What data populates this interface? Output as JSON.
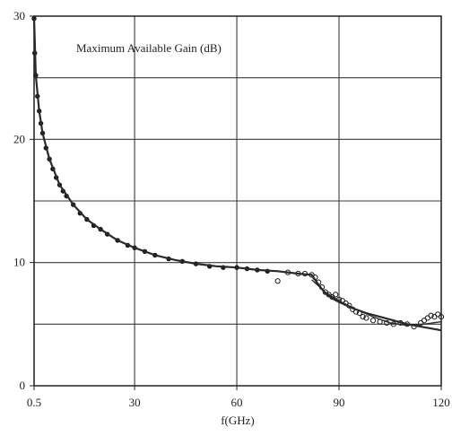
{
  "chart_data": {
    "type": "scatter",
    "title": "",
    "annotation": "Maximum Available Gain (dB)",
    "xlabel": "f(GHz)",
    "ylabel": "",
    "xlim": [
      0.5,
      120
    ],
    "ylim": [
      0,
      30
    ],
    "grid": true,
    "x_ticks": [
      {
        "value": 0.5,
        "label": "0.5"
      },
      {
        "value": 30,
        "label": "30"
      },
      {
        "value": 60,
        "label": "60"
      },
      {
        "value": 90,
        "label": "90"
      },
      {
        "value": 120,
        "label": "120"
      }
    ],
    "y_ticks": [
      {
        "value": 0,
        "label": "0"
      },
      {
        "value": 10,
        "label": "10"
      },
      {
        "value": 20,
        "label": "20"
      },
      {
        "value": 30,
        "label": "30"
      }
    ],
    "x_gridlines": [
      0.5,
      30,
      60,
      90,
      120
    ],
    "y_gridlines": [
      5,
      10,
      15,
      20,
      25
    ],
    "series": [
      {
        "style": "measured-points",
        "color": "#1a1a1a",
        "x": [
          0.5,
          0.7,
          1,
          1.5,
          2,
          2.5,
          3,
          4,
          5,
          6,
          7,
          8,
          9,
          10,
          12,
          14,
          16,
          18,
          20,
          22,
          25,
          28,
          30,
          33,
          36,
          40,
          44,
          48,
          52,
          56,
          60,
          63,
          66,
          69,
          72,
          75,
          78,
          80,
          82,
          83,
          84,
          85,
          86,
          87,
          88,
          89,
          90,
          91,
          92,
          93,
          94,
          95,
          96,
          97,
          98,
          100,
          102,
          104,
          106,
          108,
          110,
          112,
          114,
          115,
          116,
          117,
          118,
          119,
          120
        ],
        "y": [
          29.8,
          27,
          25.2,
          23.5,
          22.3,
          21.3,
          20.5,
          19.3,
          18.4,
          17.6,
          16.9,
          16.3,
          15.8,
          15.4,
          14.7,
          14.0,
          13.5,
          13.0,
          12.7,
          12.3,
          11.8,
          11.4,
          11.2,
          10.9,
          10.6,
          10.3,
          10.1,
          9.9,
          9.7,
          9.6,
          9.6,
          9.5,
          9.4,
          9.3,
          8.5,
          9.2,
          9.1,
          9.1,
          9.0,
          8.8,
          8.4,
          8.0,
          7.6,
          7.4,
          7.2,
          7.4,
          7.0,
          6.9,
          6.7,
          6.5,
          6.2,
          6.0,
          5.9,
          5.6,
          5.5,
          5.3,
          5.2,
          5.1,
          5.0,
          5.1,
          5.0,
          4.8,
          5.1,
          5.3,
          5.5,
          5.7,
          5.6,
          5.8,
          5.6
        ]
      },
      {
        "style": "model-line",
        "color": "#2a2a2a",
        "x": [
          0.5,
          1,
          2,
          3,
          5,
          8,
          12,
          16,
          20,
          25,
          30,
          36,
          42,
          48,
          54,
          60,
          66,
          72,
          78,
          82,
          84,
          86,
          88,
          90,
          94,
          98,
          102,
          106,
          110,
          114,
          118,
          120
        ],
        "y": [
          29.9,
          25.2,
          22.3,
          20.5,
          18.4,
          16.3,
          14.7,
          13.5,
          12.7,
          11.8,
          11.2,
          10.6,
          10.2,
          9.9,
          9.7,
          9.6,
          9.4,
          9.3,
          9.1,
          9.0,
          8.2,
          7.5,
          7.1,
          6.8,
          6.3,
          5.9,
          5.6,
          5.3,
          5.0,
          4.8,
          4.6,
          4.5
        ]
      },
      {
        "style": "fit-line",
        "color": "#2a2a2a",
        "x": [
          82,
          86,
          90,
          95,
          100,
          105,
          110,
          115,
          120
        ],
        "y": [
          8.6,
          7.6,
          6.9,
          6.2,
          5.6,
          5.1,
          4.9,
          5.0,
          5.2
        ]
      }
    ]
  }
}
